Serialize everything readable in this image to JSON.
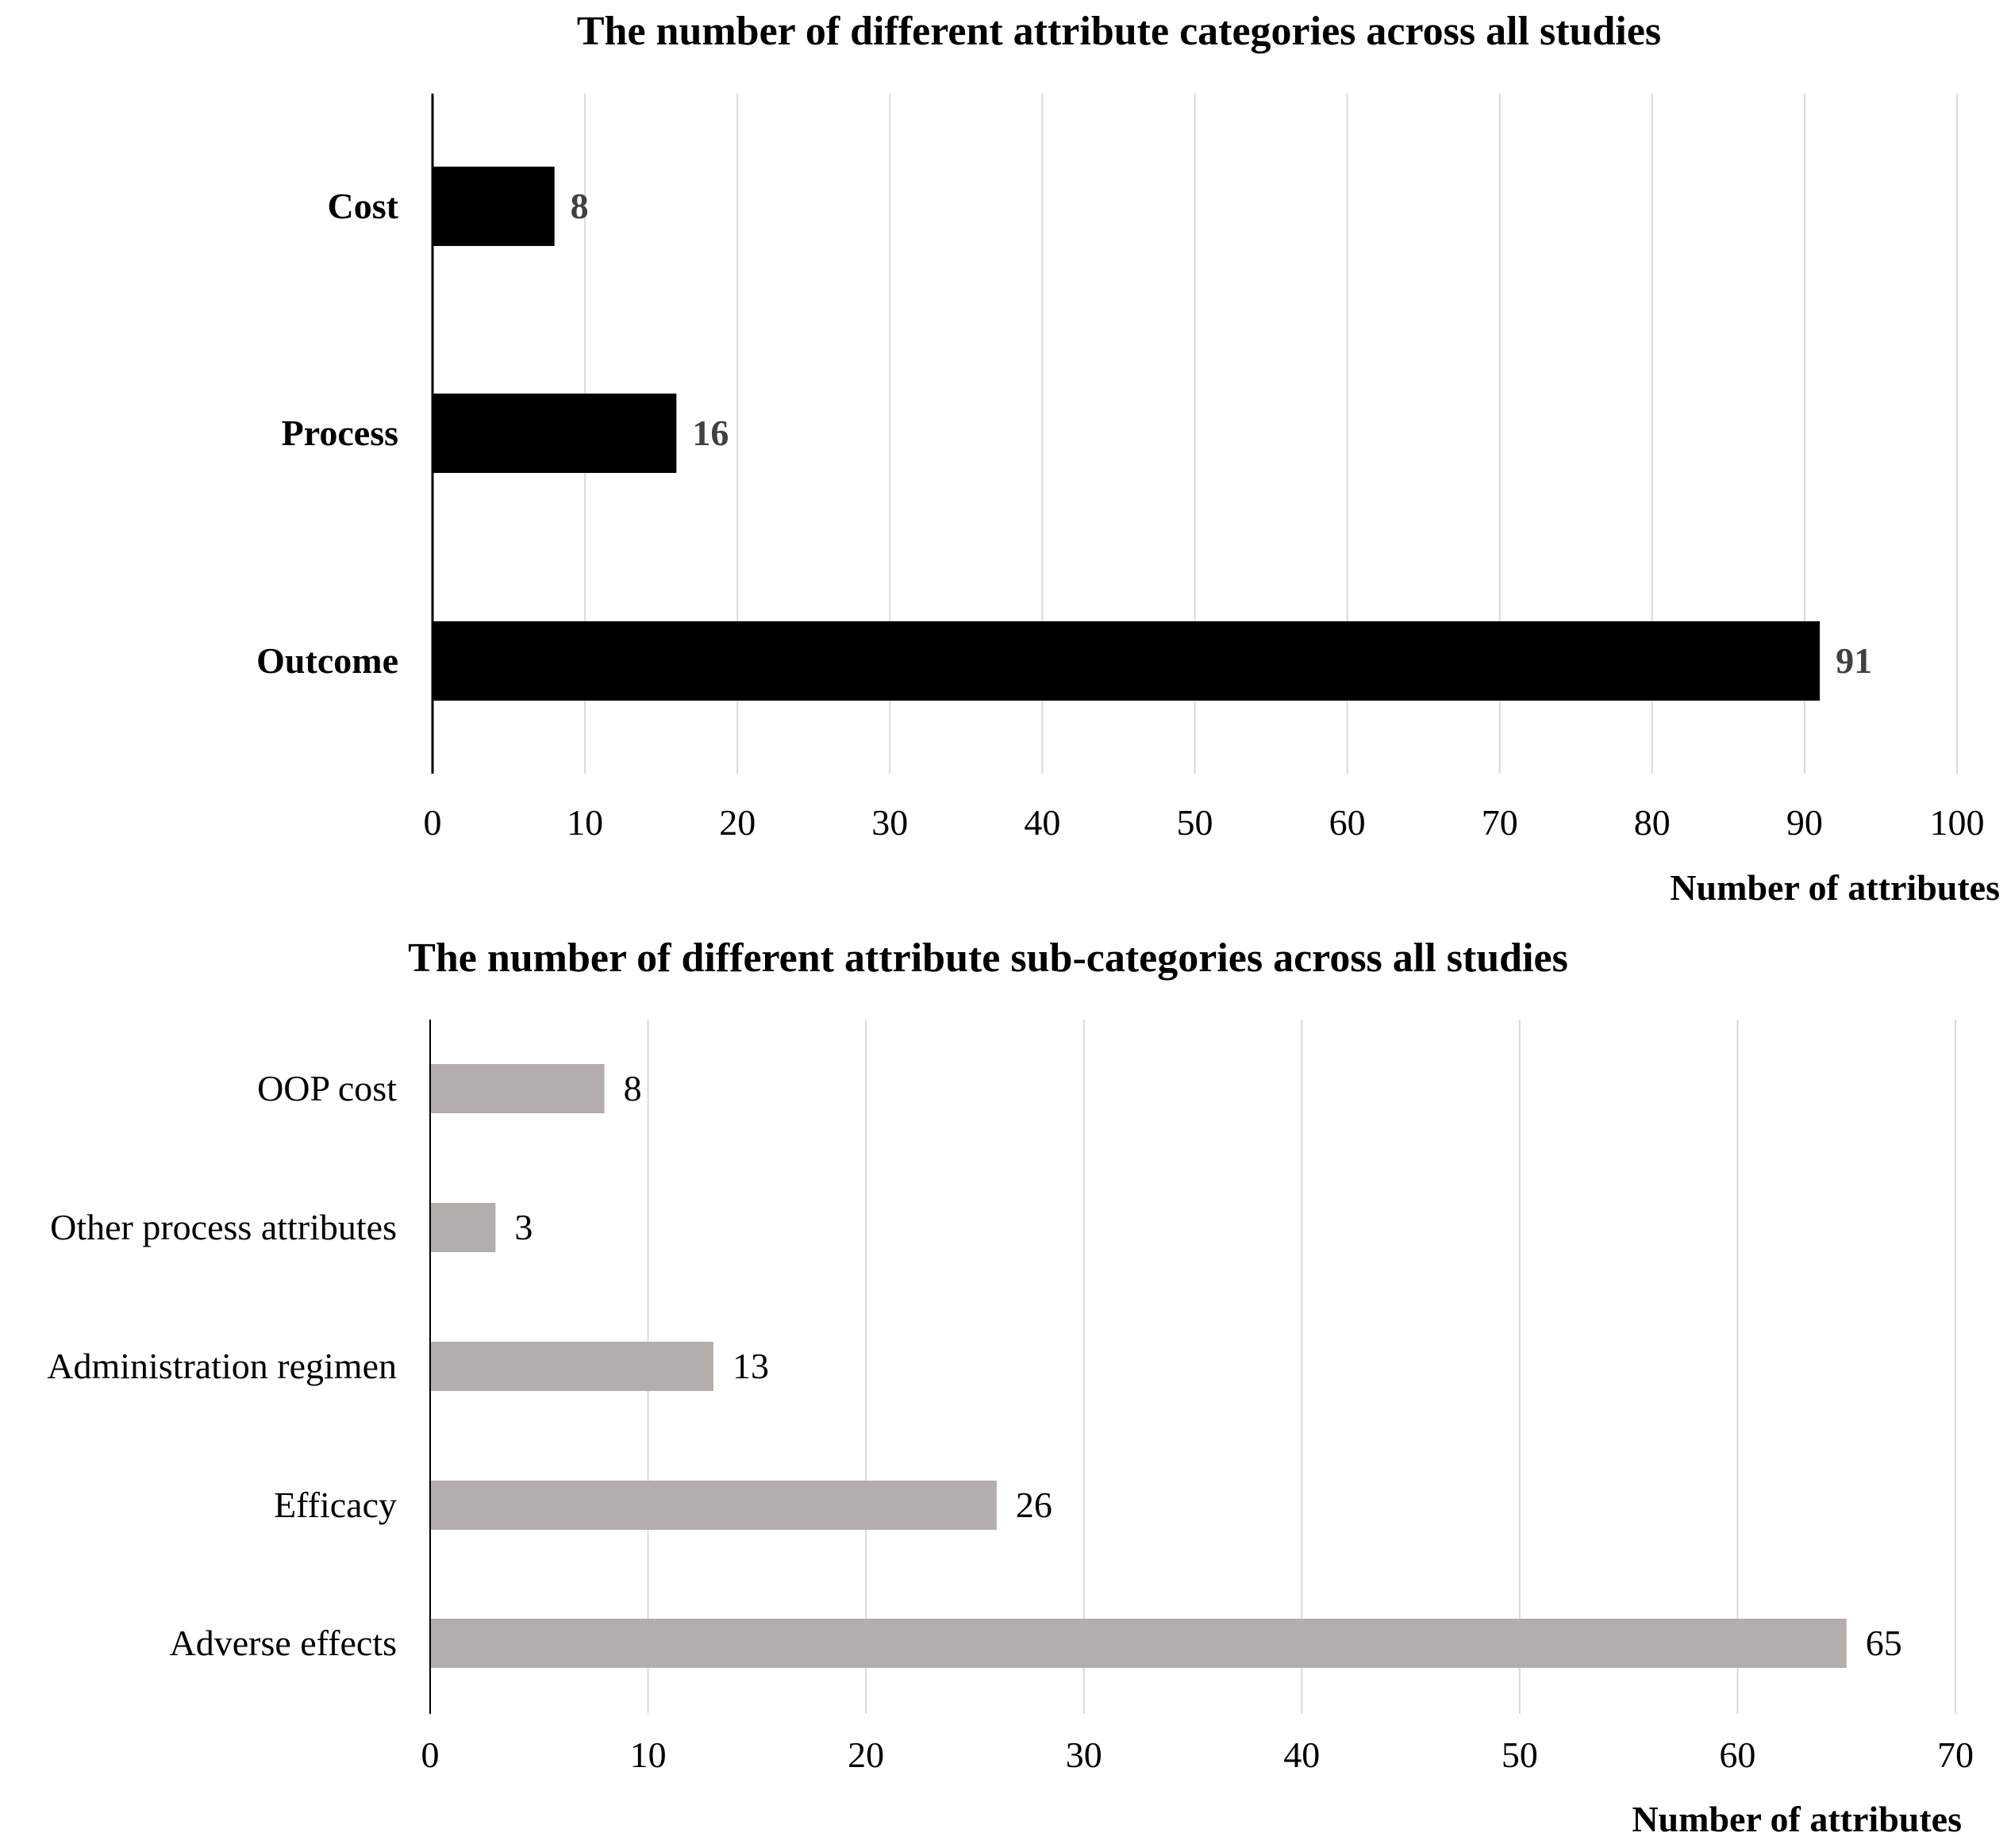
{
  "chart_data": [
    {
      "type": "bar",
      "orientation": "horizontal",
      "title": "The number of different attribute categories across all studies",
      "xlabel": "Number of attributes",
      "ylabel": "",
      "categories": [
        "Cost",
        "Process",
        "Outcome"
      ],
      "values": [
        8,
        16,
        91
      ],
      "xlim": [
        0,
        100
      ],
      "xticks": [
        0,
        10,
        20,
        30,
        40,
        50,
        60,
        70,
        80,
        90,
        100
      ],
      "data_labels": true,
      "grid": "vertical",
      "bar_color": "#000000"
    },
    {
      "type": "bar",
      "orientation": "horizontal",
      "title": "The number of different attribute sub-categories across all studies",
      "xlabel": "Number of attributes",
      "ylabel": "",
      "categories": [
        "OOP cost",
        "Other process attributes",
        "Administration regimen",
        "Efficacy",
        "Adverse effects"
      ],
      "values": [
        8,
        3,
        13,
        26,
        65
      ],
      "xlim": [
        0,
        70
      ],
      "xticks": [
        0,
        10,
        20,
        30,
        40,
        50,
        60,
        70
      ],
      "data_labels": true,
      "grid": "vertical",
      "bar_color": "#b3adab"
    }
  ]
}
